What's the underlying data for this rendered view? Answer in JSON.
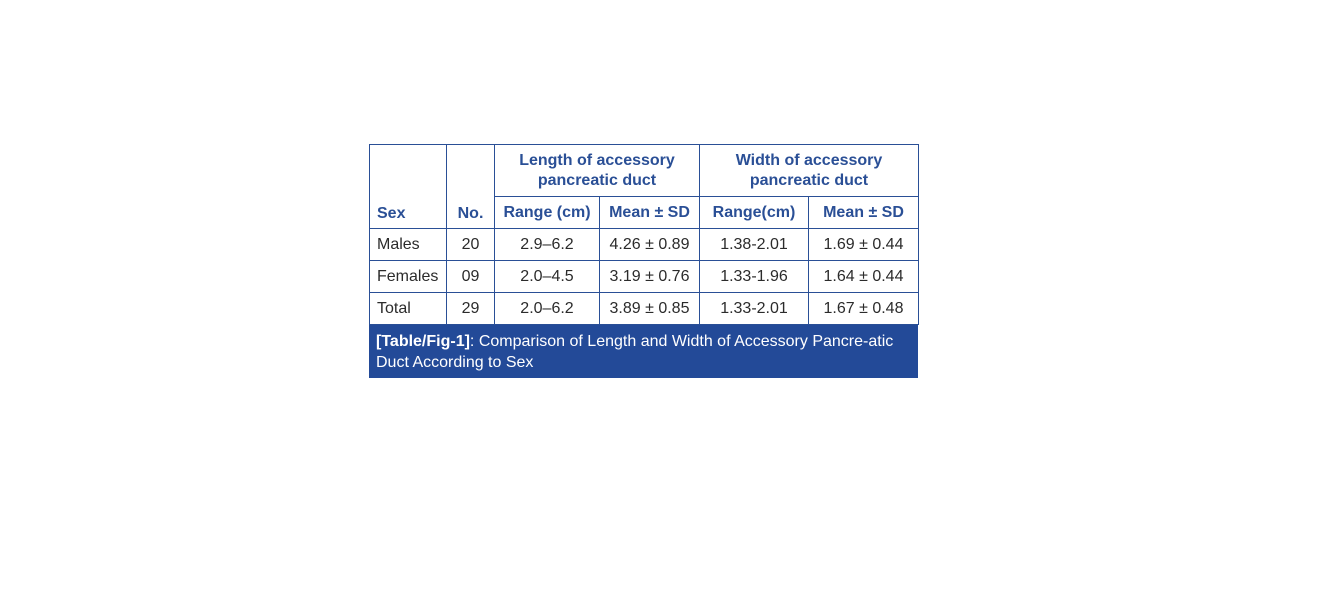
{
  "table": {
    "headers": {
      "sex": "Sex",
      "no": "No.",
      "length_group": "Length of accessory pancreatic duct",
      "width_group": "Width of accessory pancreatic duct",
      "length_range": "Range (cm)",
      "length_mean": "Mean ± SD",
      "width_range": "Range(cm)",
      "width_mean": "Mean ± SD"
    },
    "rows": [
      {
        "sex": "Males",
        "no": "20",
        "length_range": "2.9–6.2",
        "length_mean": "4.26 ± 0.89",
        "width_range": "1.38-2.01",
        "width_mean": "1.69 ± 0.44"
      },
      {
        "sex": "Females",
        "no": "09",
        "length_range": "2.0–4.5",
        "length_mean": "3.19 ± 0.76",
        "width_range": "1.33-1.96",
        "width_mean": "1.64 ± 0.44"
      },
      {
        "sex": "Total",
        "no": "29",
        "length_range": "2.0–6.2",
        "length_mean": "3.89 ± 0.85",
        "width_range": "1.33-2.01",
        "width_mean": "1.67 ± 0.48"
      }
    ]
  },
  "caption": {
    "label": "[Table/Fig-1]",
    "text": ": Comparison of Length and Width of Accessory Pancre-atic Duct According to Sex"
  },
  "colors": {
    "border": "#2a4f96",
    "header_text": "#2a4f96",
    "caption_bg": "#234a98",
    "caption_text": "#ffffff"
  }
}
